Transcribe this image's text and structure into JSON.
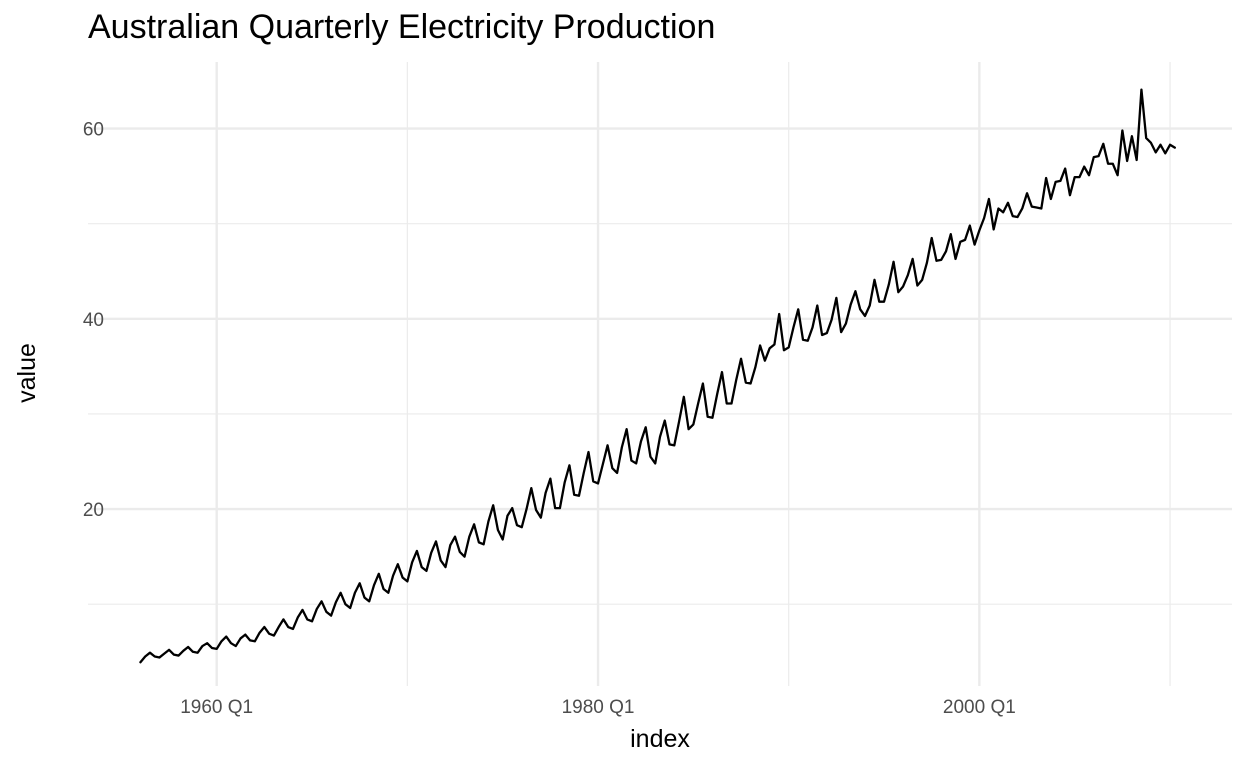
{
  "chart_data": {
    "type": "line",
    "title": "Australian Quarterly Electricity Production",
    "xlabel": "index",
    "ylabel": "value",
    "x_start": "1956 Q1",
    "x_ticks": [
      "1960 Q1",
      "1980 Q1",
      "2000 Q1"
    ],
    "y_ticks": [
      20,
      40,
      60
    ],
    "ylim": [
      1.4,
      67
    ],
    "xlim": [
      "1953 Q2",
      "2013 Q2"
    ],
    "grid": true,
    "line_color": "#000000",
    "series": [
      {
        "values": [
          3.9,
          4.5,
          4.9,
          4.5,
          4.4,
          4.8,
          5.2,
          4.7,
          4.6,
          5.1,
          5.5,
          5.0,
          4.9,
          5.6,
          5.9,
          5.4,
          5.3,
          6.1,
          6.6,
          5.9,
          5.6,
          6.4,
          6.8,
          6.2,
          6.1,
          7.0,
          7.6,
          6.9,
          6.7,
          7.6,
          8.4,
          7.6,
          7.4,
          8.6,
          9.4,
          8.4,
          8.2,
          9.5,
          10.3,
          9.2,
          8.8,
          10.2,
          11.2,
          10.0,
          9.6,
          11.2,
          12.2,
          10.7,
          10.3,
          12.0,
          13.2,
          11.6,
          11.2,
          13.0,
          14.2,
          12.8,
          12.4,
          14.4,
          15.6,
          13.9,
          13.5,
          15.4,
          16.6,
          14.6,
          13.9,
          16.2,
          17.1,
          15.5,
          15.0,
          17.1,
          18.4,
          16.5,
          16.3,
          18.7,
          20.4,
          17.8,
          16.8,
          19.3,
          20.1,
          18.3,
          18.1,
          20.0,
          22.2,
          19.9,
          19.1,
          21.7,
          23.2,
          20.1,
          20.1,
          22.8,
          24.6,
          21.5,
          21.4,
          23.8,
          26.0,
          22.9,
          22.7,
          24.7,
          26.7,
          24.3,
          23.8,
          26.5,
          28.4,
          25.1,
          24.8,
          27.1,
          28.6,
          25.5,
          24.8,
          27.6,
          29.3,
          26.8,
          26.7,
          29.2,
          31.8,
          28.4,
          28.9,
          31.1,
          33.2,
          29.7,
          29.6,
          32.1,
          34.4,
          31.1,
          31.1,
          33.6,
          35.8,
          33.3,
          33.2,
          34.9,
          37.2,
          35.6,
          36.9,
          37.3,
          40.5,
          36.7,
          37.0,
          39.1,
          41.0,
          37.8,
          37.7,
          39.1,
          41.4,
          38.3,
          38.5,
          39.9,
          42.2,
          38.6,
          39.5,
          41.5,
          42.9,
          41.0,
          40.3,
          41.4,
          44.1,
          41.8,
          41.8,
          43.6,
          46.0,
          42.8,
          43.4,
          44.6,
          46.3,
          43.5,
          44.1,
          45.9,
          48.5,
          46.1,
          46.2,
          47.1,
          48.9,
          46.3,
          48.1,
          48.3,
          49.8,
          47.8,
          49.3,
          50.6,
          52.6,
          49.4,
          51.6,
          51.2,
          52.2,
          50.8,
          50.7,
          51.6,
          53.2,
          51.8,
          51.7,
          51.6,
          54.8,
          52.6,
          54.4,
          54.5,
          55.8,
          53.0,
          54.9,
          54.9,
          56.0,
          55.1,
          57.0,
          57.1,
          58.4,
          56.3,
          56.3,
          55.1,
          59.8,
          56.6,
          59.2,
          56.7,
          64.1,
          59.0,
          58.5,
          57.5,
          58.3,
          57.4,
          58.3,
          58.0
        ]
      }
    ]
  }
}
